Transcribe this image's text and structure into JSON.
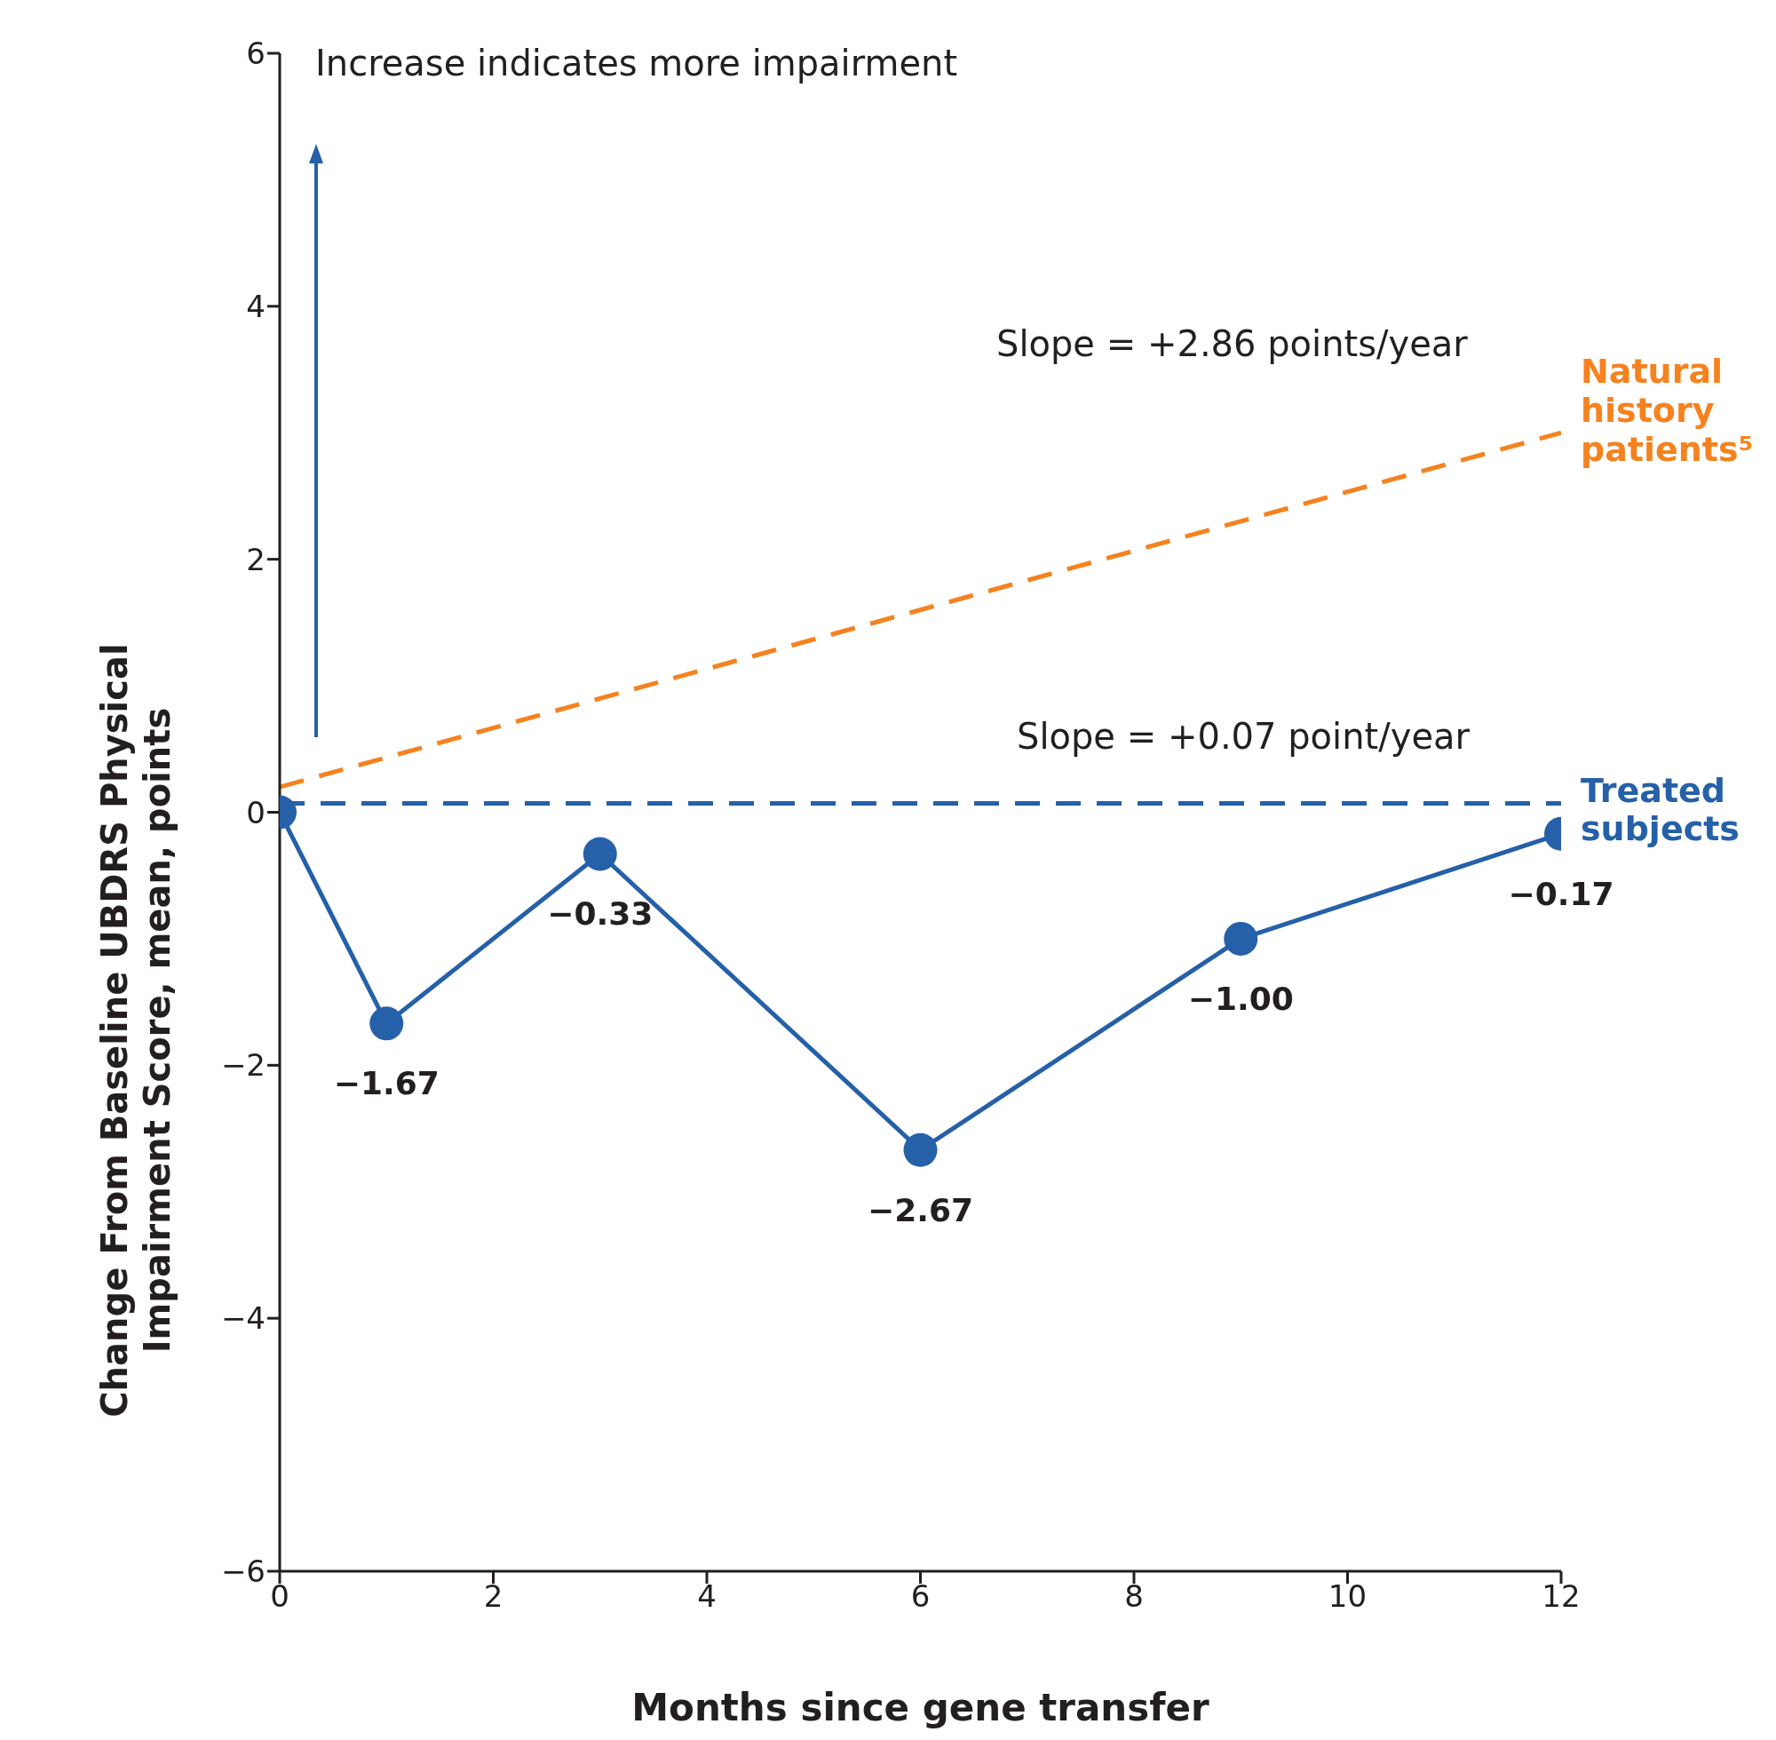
{
  "chart_data": {
    "type": "line",
    "xlabel": "Months since gene transfer",
    "ylabel": "Change From Baseline UBDRS Physical Impairment Score, mean, points",
    "annotations": [
      "Increase indicates more impairment",
      "Slope = +2.86 points/year",
      "Slope = +0.07 point/year"
    ],
    "series": [
      {
        "name": "Treated subjects",
        "color": "#2560a8",
        "x": [
          0,
          1,
          3,
          6,
          9,
          12
        ],
        "values": [
          0,
          -1.67,
          -0.33,
          -2.67,
          -1.0,
          -0.17
        ],
        "value_labels": [
          null,
          "−1.67",
          "−0.33",
          "−2.67",
          "−1.00",
          "−0.17"
        ],
        "marker": "circle",
        "line_style": "solid"
      },
      {
        "color": "#2560a8",
        "x": [
          0,
          12
        ],
        "values": [
          0.07,
          0.07
        ],
        "line_style": "dashed",
        "marker": "none"
      },
      {
        "name": "Natural history patients⁵",
        "color": "#f5821f",
        "x": [
          0,
          12
        ],
        "values": [
          0.2,
          3.0
        ],
        "line_style": "dashed",
        "marker": "none"
      }
    ],
    "xlim": [
      0,
      12
    ],
    "xticks": [
      0,
      2,
      4,
      6,
      8,
      10,
      12
    ],
    "ylim": [
      -6,
      6
    ],
    "yticks": [
      {
        "value": -6,
        "label": "−6"
      },
      {
        "value": -4,
        "label": "−4"
      },
      {
        "value": -2,
        "label": "−2"
      },
      0,
      2,
      4,
      6
    ],
    "grid": false,
    "legend": false
  }
}
